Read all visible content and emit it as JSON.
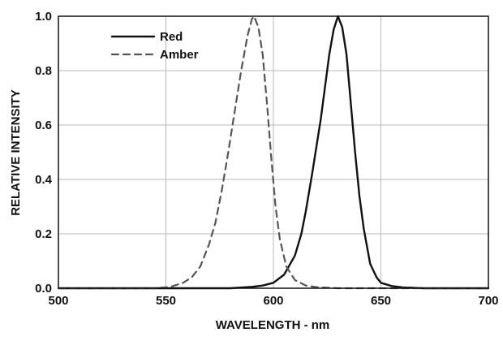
{
  "chart_data": {
    "type": "line",
    "title": "",
    "xlabel": "WAVELENGTH - nm",
    "ylabel": "RELATIVE INTENSITY",
    "xlim": [
      500,
      700
    ],
    "ylim": [
      0,
      1.0
    ],
    "x_ticks": [
      500,
      550,
      600,
      650,
      700
    ],
    "y_ticks": [
      0.0,
      0.2,
      0.4,
      0.6,
      0.8,
      1.0
    ],
    "x_tick_labels": [
      "500",
      "550",
      "600",
      "650",
      "700"
    ],
    "y_tick_labels": [
      "0.0",
      "0.2",
      "0.4",
      "0.6",
      "0.8",
      "1.0"
    ],
    "grid": true,
    "legend_position": "top-left",
    "series": [
      {
        "name": "Red",
        "color": "#111111",
        "line_style": "solid",
        "points": [
          {
            "x": 500,
            "y": 0.0
          },
          {
            "x": 550,
            "y": 0.0
          },
          {
            "x": 580,
            "y": 0.0
          },
          {
            "x": 590,
            "y": 0.005
          },
          {
            "x": 595,
            "y": 0.01
          },
          {
            "x": 600,
            "y": 0.02
          },
          {
            "x": 605,
            "y": 0.05
          },
          {
            "x": 610,
            "y": 0.12
          },
          {
            "x": 613,
            "y": 0.2
          },
          {
            "x": 615,
            "y": 0.28
          },
          {
            "x": 618,
            "y": 0.42
          },
          {
            "x": 620,
            "y": 0.52
          },
          {
            "x": 622,
            "y": 0.62
          },
          {
            "x": 624,
            "y": 0.74
          },
          {
            "x": 626,
            "y": 0.86
          },
          {
            "x": 628,
            "y": 0.95
          },
          {
            "x": 630,
            "y": 1.0
          },
          {
            "x": 632,
            "y": 0.96
          },
          {
            "x": 634,
            "y": 0.86
          },
          {
            "x": 636,
            "y": 0.68
          },
          {
            "x": 638,
            "y": 0.5
          },
          {
            "x": 640,
            "y": 0.34
          },
          {
            "x": 642,
            "y": 0.22
          },
          {
            "x": 645,
            "y": 0.09
          },
          {
            "x": 648,
            "y": 0.04
          },
          {
            "x": 650,
            "y": 0.02
          },
          {
            "x": 655,
            "y": 0.008
          },
          {
            "x": 660,
            "y": 0.003
          },
          {
            "x": 670,
            "y": 0.0
          },
          {
            "x": 700,
            "y": 0.0
          }
        ]
      },
      {
        "name": "Amber",
        "color": "#555555",
        "line_style": "dashed",
        "points": [
          {
            "x": 500,
            "y": 0.0
          },
          {
            "x": 545,
            "y": 0.0
          },
          {
            "x": 552,
            "y": 0.005
          },
          {
            "x": 558,
            "y": 0.02
          },
          {
            "x": 562,
            "y": 0.04
          },
          {
            "x": 566,
            "y": 0.08
          },
          {
            "x": 570,
            "y": 0.16
          },
          {
            "x": 573,
            "y": 0.24
          },
          {
            "x": 576,
            "y": 0.36
          },
          {
            "x": 579,
            "y": 0.5
          },
          {
            "x": 582,
            "y": 0.65
          },
          {
            "x": 585,
            "y": 0.8
          },
          {
            "x": 588,
            "y": 0.93
          },
          {
            "x": 590,
            "y": 0.99
          },
          {
            "x": 591,
            "y": 1.0
          },
          {
            "x": 593,
            "y": 0.96
          },
          {
            "x": 595,
            "y": 0.86
          },
          {
            "x": 597,
            "y": 0.68
          },
          {
            "x": 599,
            "y": 0.48
          },
          {
            "x": 601,
            "y": 0.3
          },
          {
            "x": 603,
            "y": 0.18
          },
          {
            "x": 606,
            "y": 0.08
          },
          {
            "x": 610,
            "y": 0.03
          },
          {
            "x": 615,
            "y": 0.01
          },
          {
            "x": 620,
            "y": 0.004
          },
          {
            "x": 630,
            "y": 0.0
          },
          {
            "x": 700,
            "y": 0.0
          }
        ]
      }
    ]
  }
}
